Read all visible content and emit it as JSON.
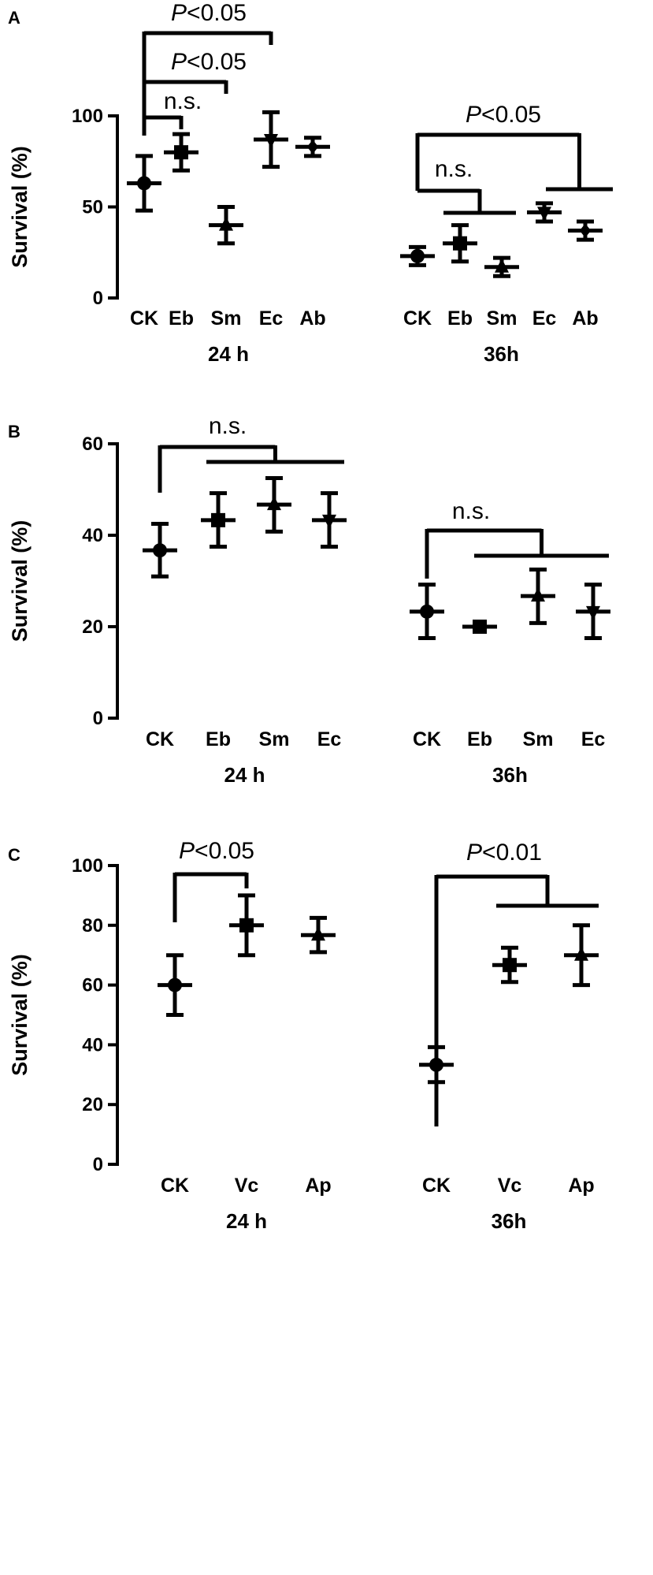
{
  "colors": {
    "ink": "#000000",
    "background": "#ffffff"
  },
  "chart_data": [
    {
      "panel": "A",
      "type": "scatter",
      "title": "",
      "ylabel": "Survival (%)",
      "xlabel": "",
      "ylim": [
        0,
        100
      ],
      "yticks": [
        0,
        50,
        100
      ],
      "grid": false,
      "groups": [
        {
          "name": "24 h",
          "points": [
            {
              "category": "CK",
              "marker": "circle",
              "mean": 63,
              "low": 48,
              "high": 78
            },
            {
              "category": "Eb",
              "marker": "square",
              "mean": 80,
              "low": 70,
              "high": 90
            },
            {
              "category": "Sm",
              "marker": "triangle",
              "mean": 40,
              "low": 30,
              "high": 50
            },
            {
              "category": "Ec",
              "marker": "triangle-down",
              "mean": 87,
              "low": 72,
              "high": 102
            },
            {
              "category": "Ab",
              "marker": "diamond",
              "mean": 83,
              "low": 78,
              "high": 88
            }
          ]
        },
        {
          "name": "36h",
          "points": [
            {
              "category": "CK",
              "marker": "circle",
              "mean": 23,
              "low": 18,
              "high": 28
            },
            {
              "category": "Eb",
              "marker": "square",
              "mean": 30,
              "low": 20,
              "high": 40
            },
            {
              "category": "Sm",
              "marker": "triangle",
              "mean": 17,
              "low": 12,
              "high": 22
            },
            {
              "category": "Ec",
              "marker": "triangle-down",
              "mean": 47,
              "low": 42,
              "high": 52
            },
            {
              "category": "Ab",
              "marker": "diamond",
              "mean": 37,
              "low": 32,
              "high": 42
            }
          ]
        }
      ],
      "annotations": [
        {
          "text": "n.s.",
          "italic_prefix": "",
          "from": [
            0,
            0
          ],
          "to": [
            [
              0,
              1
            ]
          ]
        },
        {
          "text": "<0.05",
          "italic_prefix": "P",
          "from": [
            0,
            0
          ],
          "to": [
            [
              0,
              2
            ]
          ]
        },
        {
          "text": "<0.05",
          "italic_prefix": "P",
          "from": [
            0,
            0
          ],
          "to": [
            [
              0,
              3
            ]
          ]
        },
        {
          "text": "n.s.",
          "italic_prefix": "",
          "from": [
            1,
            0
          ],
          "to": [
            [
              1,
              1
            ],
            [
              1,
              2
            ]
          ]
        },
        {
          "text": "<0.05",
          "italic_prefix": "P",
          "from": [
            1,
            0
          ],
          "to": [
            [
              1,
              3
            ],
            [
              1,
              4
            ]
          ]
        }
      ]
    },
    {
      "panel": "B",
      "type": "scatter",
      "title": "",
      "ylabel": "Survival (%)",
      "xlabel": "",
      "ylim": [
        0,
        60
      ],
      "yticks": [
        0,
        20,
        40,
        60
      ],
      "grid": false,
      "groups": [
        {
          "name": "24 h",
          "points": [
            {
              "category": "CK",
              "marker": "circle",
              "mean": 36.7,
              "low": 31,
              "high": 42.5
            },
            {
              "category": "Eb",
              "marker": "square",
              "mean": 43.3,
              "low": 37.5,
              "high": 49.2
            },
            {
              "category": "Sm",
              "marker": "triangle",
              "mean": 46.7,
              "low": 40.8,
              "high": 52.5
            },
            {
              "category": "Ec",
              "marker": "triangle-down",
              "mean": 43.3,
              "low": 37.5,
              "high": 49.2
            }
          ]
        },
        {
          "name": "36h",
          "points": [
            {
              "category": "CK",
              "marker": "circle",
              "mean": 23.3,
              "low": 17.5,
              "high": 29.2
            },
            {
              "category": "Eb",
              "marker": "square",
              "mean": 20,
              "low": 20,
              "high": 20
            },
            {
              "category": "Sm",
              "marker": "triangle",
              "mean": 26.7,
              "low": 20.8,
              "high": 32.5
            },
            {
              "category": "Ec",
              "marker": "triangle-down",
              "mean": 23.3,
              "low": 17.5,
              "high": 29.2
            }
          ]
        }
      ],
      "annotations": [
        {
          "text": "n.s.",
          "italic_prefix": "",
          "from": [
            0,
            0
          ],
          "to": [
            [
              0,
              1
            ],
            [
              0,
              2
            ],
            [
              0,
              3
            ]
          ]
        },
        {
          "text": "n.s.",
          "italic_prefix": "",
          "from": [
            1,
            0
          ],
          "to": [
            [
              1,
              1
            ],
            [
              1,
              2
            ],
            [
              1,
              3
            ]
          ]
        }
      ]
    },
    {
      "panel": "C",
      "type": "scatter",
      "title": "",
      "ylabel": "Survival (%)",
      "xlabel": "",
      "ylim": [
        0,
        100
      ],
      "yticks": [
        0,
        20,
        40,
        60,
        80,
        100
      ],
      "grid": false,
      "groups": [
        {
          "name": "24 h",
          "points": [
            {
              "category": "CK",
              "marker": "circle",
              "mean": 60,
              "low": 50,
              "high": 70
            },
            {
              "category": "Vc",
              "marker": "square",
              "mean": 80,
              "low": 70,
              "high": 90
            },
            {
              "category": "Ap",
              "marker": "triangle",
              "mean": 76.7,
              "low": 71,
              "high": 82.5
            }
          ]
        },
        {
          "name": "36h",
          "points": [
            {
              "category": "CK",
              "marker": "circle",
              "mean": 33.3,
              "low": 27.5,
              "high": 39.2
            },
            {
              "category": "Vc",
              "marker": "square",
              "mean": 66.7,
              "low": 61,
              "high": 72.5
            },
            {
              "category": "Ap",
              "marker": "triangle",
              "mean": 70,
              "low": 60,
              "high": 80
            }
          ]
        }
      ],
      "annotations": [
        {
          "text": "<0.05",
          "italic_prefix": "P",
          "from": [
            0,
            0
          ],
          "to": [
            [
              0,
              1
            ]
          ]
        },
        {
          "text": "<0.01",
          "italic_prefix": "P",
          "from": [
            1,
            0
          ],
          "to": [
            [
              1,
              1
            ],
            [
              1,
              2
            ]
          ]
        }
      ]
    }
  ]
}
